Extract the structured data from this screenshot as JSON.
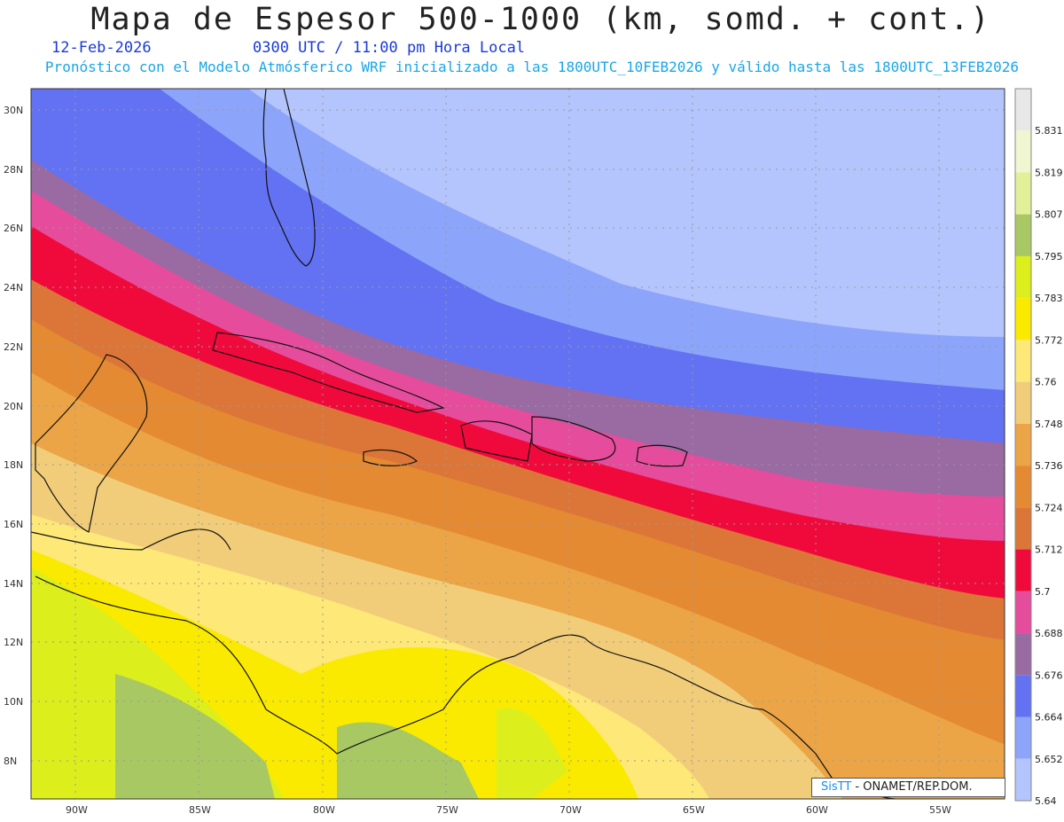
{
  "header": {
    "title": "Mapa de Espesor 500-1000 (km, somd. + cont.)",
    "date": "12-Feb-2026",
    "time": "0300 UTC / 11:00 pm Hora Local",
    "forecast": "Pronóstico con el Modelo Atmósferico WRF inicializado a las 1800UTC_10FEB2026 y válido hasta las  1800UTC_13FEB2026"
  },
  "axes": {
    "lat_labels": [
      "30N",
      "28N",
      "26N",
      "24N",
      "22N",
      "20N",
      "18N",
      "16N",
      "14N",
      "12N",
      "10N",
      "8N"
    ],
    "lon_labels": [
      "90W",
      "85W",
      "80W",
      "75W",
      "70W",
      "65W",
      "60W",
      "55W"
    ]
  },
  "colorbar": {
    "labels": [
      "5.831",
      "5.819",
      "5.807",
      "5.795",
      "5.783",
      "5.772",
      "5.76",
      "5.748",
      "5.736",
      "5.724",
      "5.712",
      "5.7",
      "5.688",
      "5.676",
      "5.664",
      "5.652",
      "5.64"
    ],
    "colors": [
      "#e8e8e8",
      "#f0f6d0",
      "#e2f09a",
      "#a8c864",
      "#dcee1c",
      "#faea00",
      "#fde878",
      "#f1cd7a",
      "#eba546",
      "#e48a32",
      "#dc7638",
      "#f00a3c",
      "#e64c9c",
      "#9a6aa2",
      "#6272f2",
      "#8ca4fa",
      "#b4c4fc"
    ]
  },
  "credit": {
    "brand": "SisTT",
    "text": " - ONAMET/REP.DOM."
  }
}
